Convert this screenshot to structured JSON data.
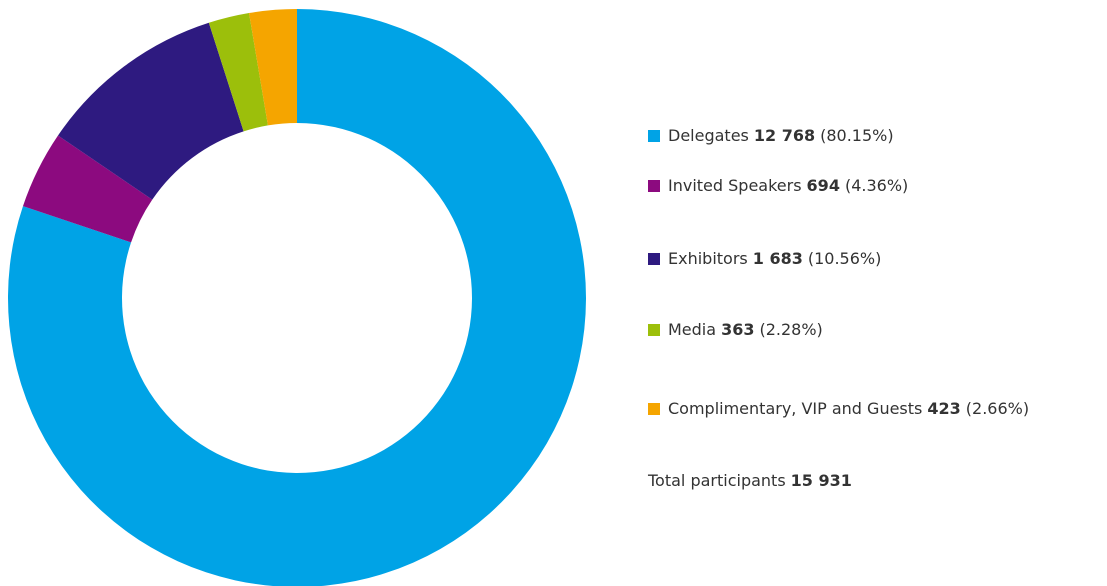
{
  "chart_data": {
    "type": "pie",
    "donut": true,
    "categories": [
      "Delegates",
      "Invited Speakers",
      "Exhibitors",
      "Media",
      "Complimentary, VIP and Guests"
    ],
    "values": [
      12768,
      694,
      1683,
      363,
      423
    ],
    "value_labels": [
      "12 768",
      "694",
      "1 683",
      "363",
      "423"
    ],
    "percents": [
      {
        "value": 80.15,
        "label": "(80.15%)"
      },
      {
        "value": 4.36,
        "label": "(4.36%)"
      },
      {
        "value": 10.56,
        "label": "(10.56%)"
      },
      {
        "value": 2.28,
        "label": "(2.28%)"
      },
      {
        "value": 2.66,
        "label": "(2.66%)"
      }
    ],
    "colors": [
      "#00a3e6",
      "#8c0a7f",
      "#2e1a80",
      "#9cbf0b",
      "#f5a500"
    ],
    "total": {
      "text": "Total participants",
      "value": 15931,
      "label": "15 931"
    }
  }
}
